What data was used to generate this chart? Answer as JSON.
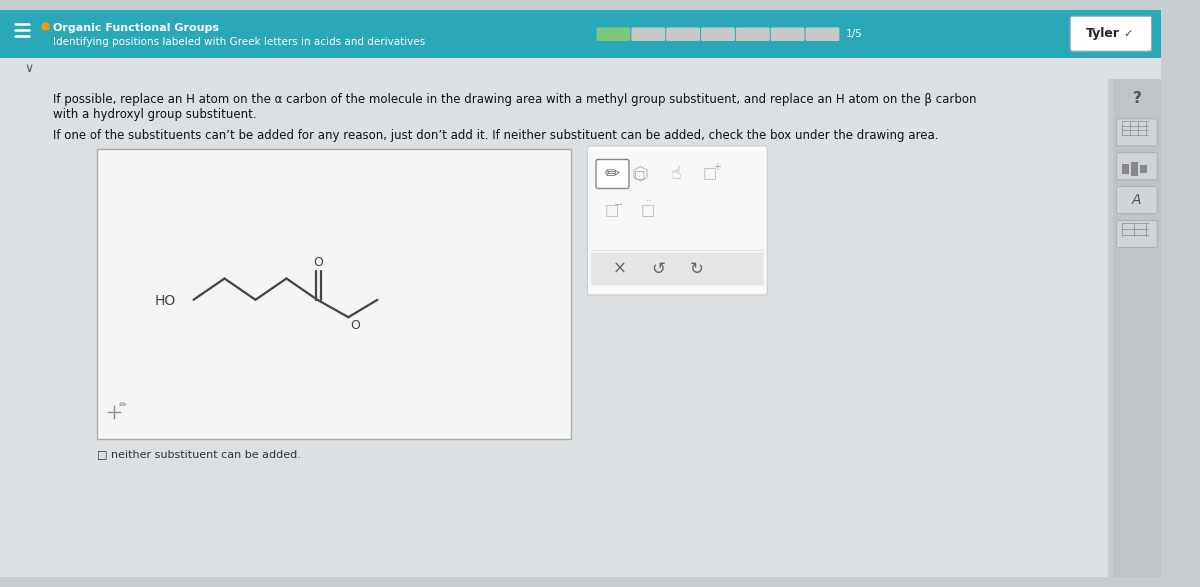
{
  "bg_color": "#c8cdd0",
  "header_bg": "#29a8b8",
  "header_title": "Organic Functional Groups",
  "header_subtitle": "Identifying positions labeled with Greek letters in acids and derivatives",
  "header_title_color": "#ffffff",
  "header_subtitle_color": "#ffffff",
  "body_bg": "#c8cdd0",
  "instruction_text1": "If possible, replace an H atom on the α carbon of the molecule in the drawing area with a methyl group substituent, and replace an H atom on the β carbon",
  "instruction_text2": "with a hydroxyl group substituent.",
  "instruction_text3": "If one of the substituents can’t be added for any reason, just don’t add it. If neither substituent can be added, check the box under the drawing area.",
  "checkbox_label": "□ neither substituent can be added.",
  "drawing_area_bg": "#f5f5f5",
  "drawing_border_color": "#bbbbbb",
  "molecule_color": "#444444",
  "toolbar_bg": "#f0f0f0",
  "toolbar_border": "#cccccc",
  "seg_colors": [
    "#7ec87e",
    "#c8c8c8",
    "#c8c8c8",
    "#c8c8c8",
    "#c8c8c8",
    "#c8c8c8",
    "#c8c8c8"
  ],
  "progress_label": "1/5",
  "user_button_text": "Tyler",
  "user_button_bg": "#ffffff"
}
